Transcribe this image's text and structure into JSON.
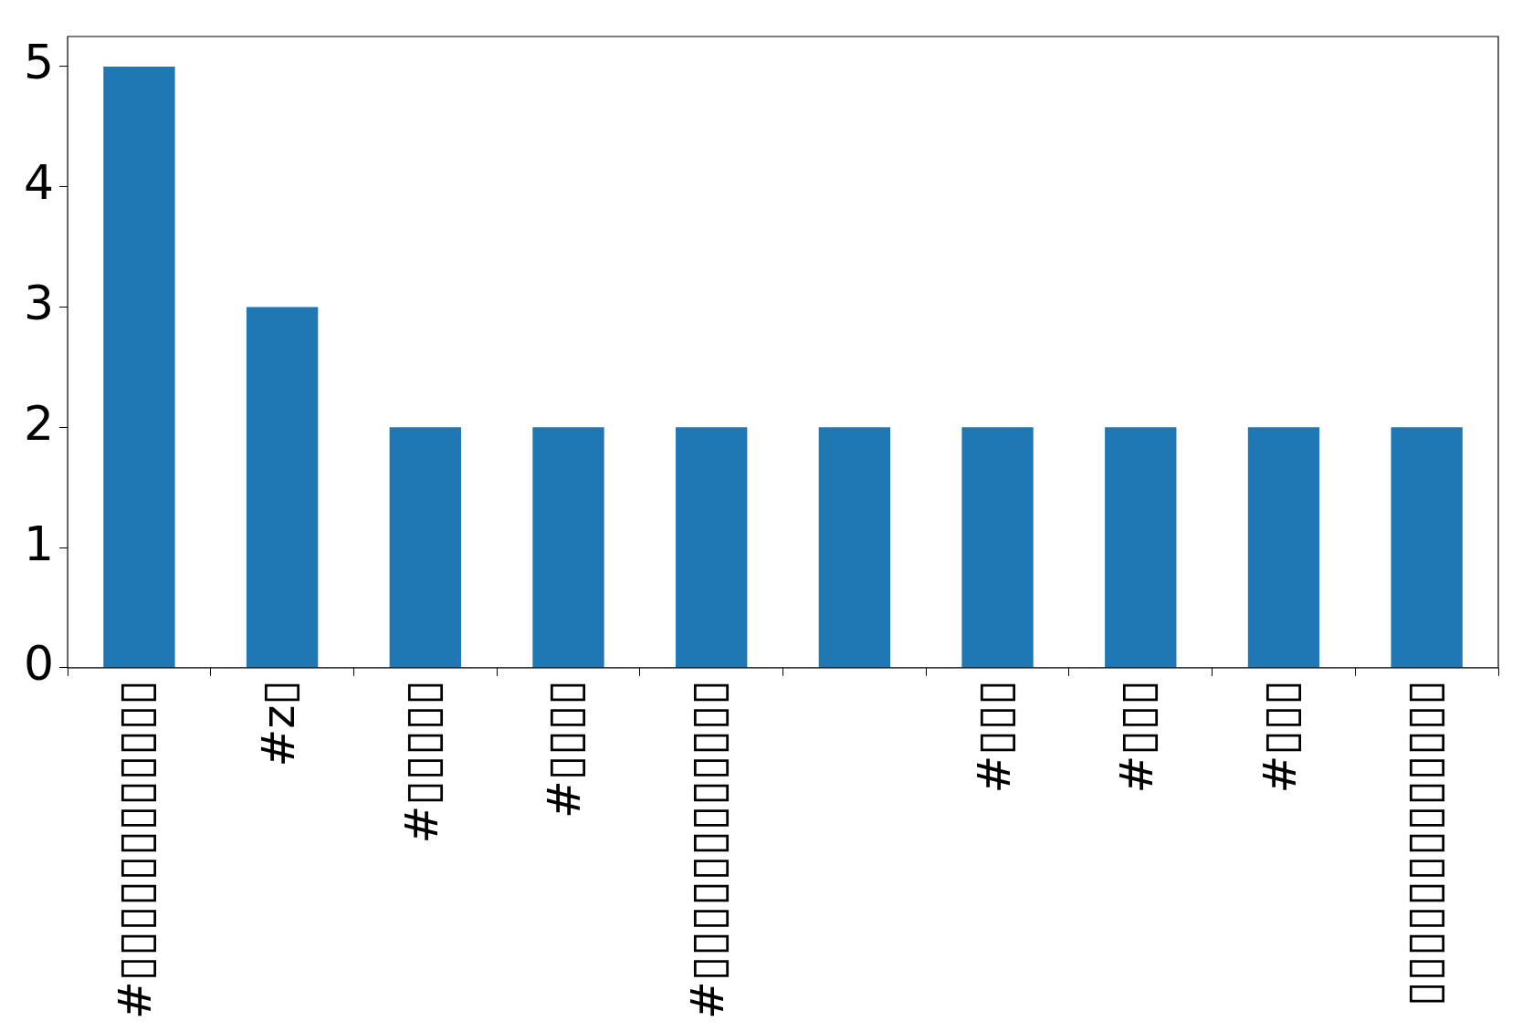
{
  "chart_data": {
    "type": "bar",
    "categories": [
      "#▯▯▯▯▯▯▯▯▯▯▯▯",
      "#z▯",
      "#▯▯▯▯▯",
      "#▯▯▯▯",
      "#▯▯▯▯▯▯▯▯▯▯▯▯",
      null,
      "#▯▯▯",
      "#▯▯▯",
      "#▯▯▯",
      "▯▯▯▯▯▯▯▯▯▯▯▯▯"
    ],
    "values": [
      5,
      3,
      2,
      2,
      2,
      2,
      2,
      2,
      2,
      2
    ],
    "color": "#1f77b4",
    "ylim": [
      0,
      5.25
    ],
    "yticks": [
      0,
      1,
      2,
      3,
      4,
      5
    ],
    "grid": false,
    "legend": false
  }
}
